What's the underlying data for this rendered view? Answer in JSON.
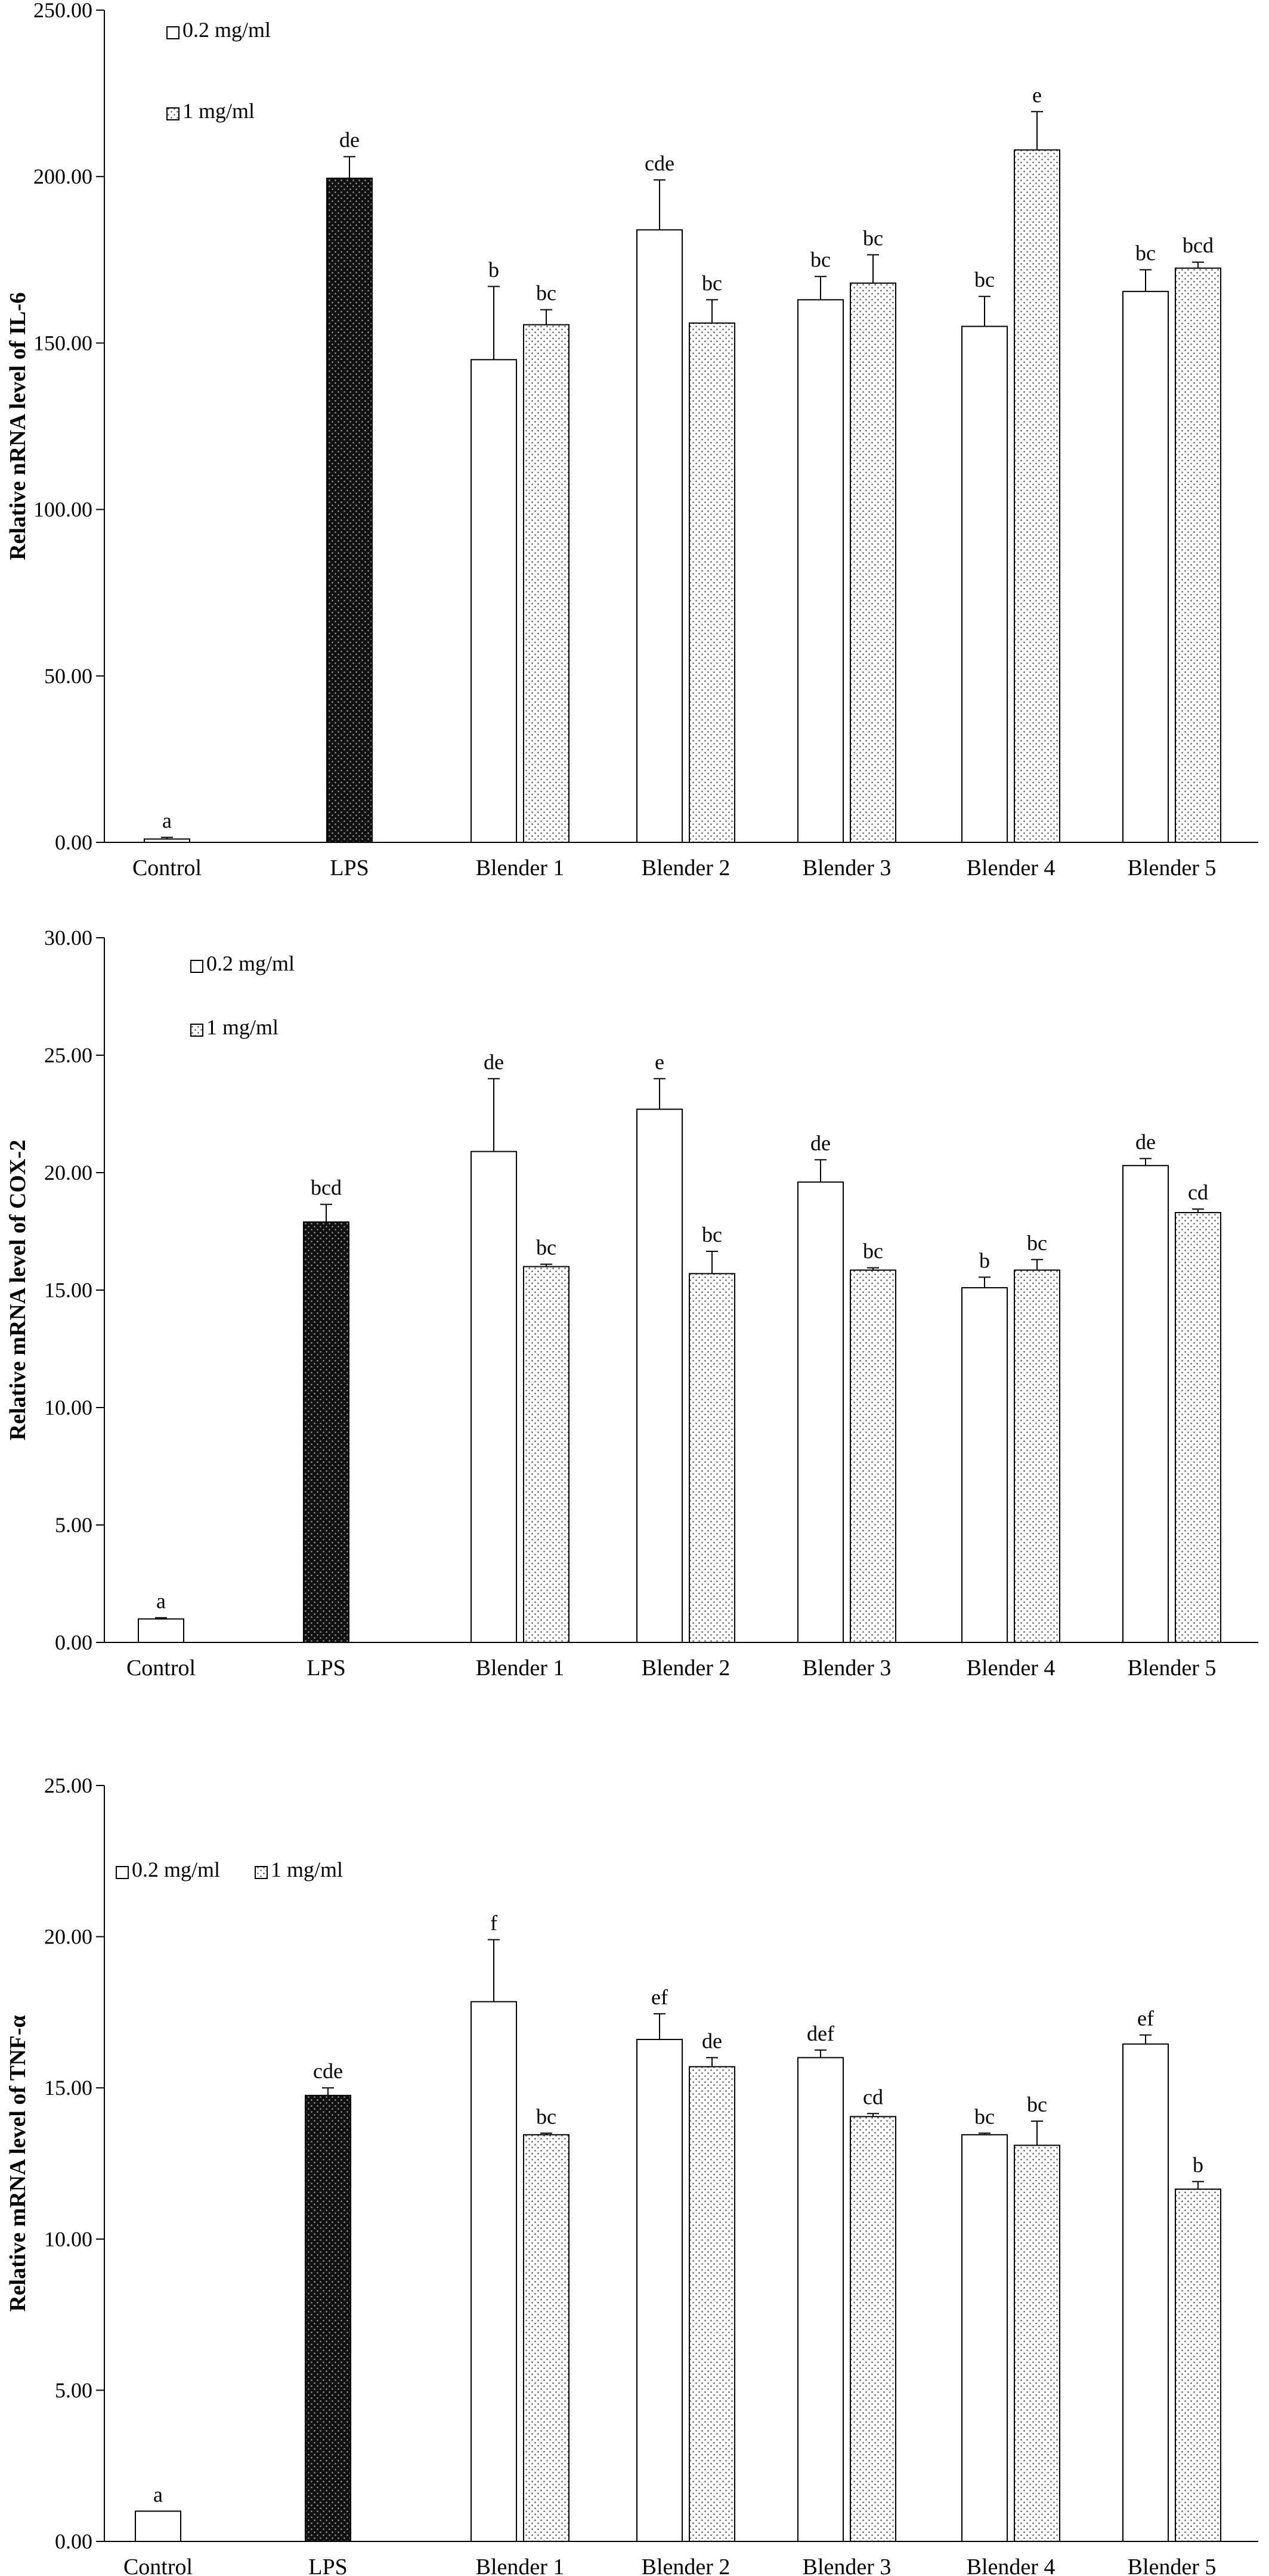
{
  "chart_data": [
    {
      "type": "bar",
      "ylabel": "Relative nRNA level of IL-6",
      "ylim": [
        0,
        250
      ],
      "yticks": [
        "0.00",
        "50.00",
        "100.00",
        "150.00",
        "200.00",
        "250.00"
      ],
      "tick_values": [
        0,
        50,
        100,
        150,
        200,
        250
      ],
      "categories": [
        "Control",
        "LPS",
        "Blender 1",
        "Blender 2",
        "Blender 3",
        "Blender 4",
        "Blender 5"
      ],
      "legend": {
        "placement": "top-left",
        "layout": "vertical",
        "entries": [
          "0.2 mg/ml",
          "1 mg/ml"
        ]
      },
      "grid": false,
      "series": [
        {
          "name": "0.2 mg/ml",
          "values": [
            1.0,
            null,
            145,
            184,
            163,
            155,
            165.5
          ],
          "errors": [
            0.5,
            null,
            22,
            15,
            7,
            9,
            6.5
          ],
          "labels": [
            "a",
            "",
            "b",
            "cde",
            "bc",
            "bc",
            "bc"
          ]
        },
        {
          "name": "1 mg/ml",
          "values": [
            null,
            null,
            155.5,
            156,
            168,
            208,
            172.5
          ],
          "errors": [
            null,
            null,
            4.5,
            7,
            8.5,
            11.5,
            1.8
          ],
          "labels": [
            "",
            "",
            "bc",
            "bc",
            "bc",
            "e",
            "bcd"
          ]
        },
        {
          "name": "",
          "values": [
            null,
            199.5,
            null,
            null,
            null,
            null,
            null
          ],
          "errors": [
            null,
            6.5,
            null,
            null,
            null,
            null,
            null
          ],
          "labels": [
            "",
            "de",
            "",
            "",
            "",
            "",
            ""
          ]
        }
      ]
    },
    {
      "type": "bar",
      "ylabel": "Relative mRNA level of COX-2",
      "ylim": [
        0,
        30
      ],
      "yticks": [
        "0.00",
        "5.00",
        "10.00",
        "15.00",
        "20.00",
        "25.00",
        "30.00"
      ],
      "tick_values": [
        0,
        5,
        10,
        15,
        20,
        25,
        30
      ],
      "categories": [
        "Control",
        "LPS",
        "Blender 1",
        "Blender 2",
        "Blender 3",
        "Blender 4",
        "Blender 5"
      ],
      "legend": {
        "placement": "top-left",
        "layout": "vertical",
        "entries": [
          "0.2 mg/ml",
          "1 mg/ml"
        ]
      },
      "grid": false,
      "series": [
        {
          "name": "0.2 mg/ml",
          "values": [
            1.0,
            null,
            20.9,
            22.7,
            19.6,
            15.1,
            20.3
          ],
          "errors": [
            0.05,
            null,
            3.1,
            1.3,
            0.95,
            0.45,
            0.3
          ],
          "labels": [
            "a",
            "",
            "de",
            "e",
            "de",
            "b",
            "de"
          ]
        },
        {
          "name": "1 mg/ml",
          "values": [
            null,
            null,
            16.0,
            15.7,
            15.85,
            15.85,
            18.3
          ],
          "errors": [
            null,
            null,
            0.1,
            0.95,
            0.1,
            0.45,
            0.15
          ],
          "labels": [
            "",
            "",
            "bc",
            "bc",
            "bc",
            "bc",
            "cd"
          ]
        },
        {
          "name": "",
          "values": [
            null,
            17.9,
            null,
            null,
            null,
            null,
            null
          ],
          "errors": [
            null,
            0.75,
            null,
            null,
            null,
            null,
            null
          ],
          "labels": [
            "",
            "bcd",
            "",
            "",
            "",
            "",
            ""
          ]
        }
      ]
    },
    {
      "type": "bar",
      "ylabel": "Relative mRNA level of TNF-α",
      "ylim": [
        0,
        25
      ],
      "yticks": [
        "0.00",
        "5.00",
        "10.00",
        "15.00",
        "20.00",
        "25.00"
      ],
      "tick_values": [
        0,
        5,
        10,
        15,
        20,
        25
      ],
      "categories": [
        "Control",
        "LPS",
        "Blender 1",
        "Blender 2",
        "Blender 3",
        "Blender 4",
        "Blender 5"
      ],
      "legend": {
        "placement": "top-left",
        "layout": "horizontal",
        "entries": [
          "0.2 mg/ml",
          "1 mg/ml"
        ]
      },
      "grid": false,
      "series": [
        {
          "name": "0.2 mg/ml",
          "values": [
            1.0,
            null,
            17.85,
            16.6,
            16.0,
            13.45,
            16.45
          ],
          "errors": [
            0,
            null,
            2.05,
            0.85,
            0.25,
            0.05,
            0.3
          ],
          "labels": [
            "a",
            "",
            "f",
            "ef",
            "def",
            "bc",
            "ef"
          ]
        },
        {
          "name": "1 mg/ml",
          "values": [
            null,
            null,
            13.45,
            15.7,
            14.05,
            13.1,
            11.65
          ],
          "errors": [
            null,
            null,
            0.05,
            0.3,
            0.1,
            0.8,
            0.25
          ],
          "labels": [
            "",
            "",
            "bc",
            "de",
            "cd",
            "bc",
            "b"
          ]
        },
        {
          "name": "",
          "values": [
            null,
            14.75,
            null,
            null,
            null,
            null,
            null
          ],
          "errors": [
            null,
            0.25,
            null,
            null,
            null,
            null,
            null
          ],
          "labels": [
            "",
            "cde",
            "",
            "",
            "",
            "",
            ""
          ]
        }
      ]
    }
  ]
}
